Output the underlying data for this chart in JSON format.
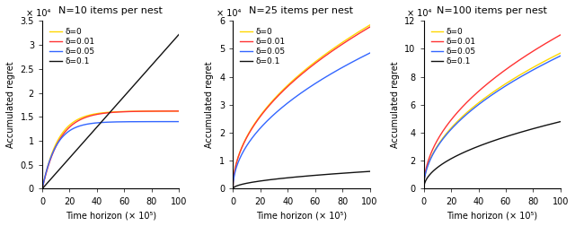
{
  "subplots": [
    {
      "title": "N=10 items per nest",
      "ylim": [
        0,
        35000.0
      ],
      "yticks": [
        0,
        5000.0,
        10000.0,
        15000.0,
        20000.0,
        25000.0,
        30000.0,
        35000.0
      ],
      "ytick_labels": [
        "0",
        "0.5",
        "1",
        "1.5",
        "2",
        "2.5",
        "3",
        "3.5"
      ],
      "ylabel": "Accumulated regret",
      "xlabel": "Time horizon (× 10⁵)",
      "scale_label": "× 10⁴",
      "curves": [
        {
          "delta": 0,
          "label": "δ=0",
          "color": "#FFD700",
          "type": "saturate",
          "sat_val": 16200.0,
          "sat_t": 35,
          "init_slope": 1.1
        },
        {
          "delta": 0.01,
          "label": "δ=0.01",
          "color": "#FF3333",
          "type": "saturate",
          "sat_val": 16200.0,
          "sat_t": 38,
          "init_slope": 1.05
        },
        {
          "delta": 0.05,
          "label": "δ=0.05",
          "color": "#3366FF",
          "type": "saturate",
          "sat_val": 14000.0,
          "sat_t": 30,
          "init_slope": 1.0
        },
        {
          "delta": 0.1,
          "label": "δ=0.1",
          "color": "#111111",
          "type": "linear",
          "final_val": 32200.0,
          "init_slope": 1.0
        }
      ]
    },
    {
      "title": "N=25 items per nest",
      "ylim": [
        0,
        60000.0
      ],
      "yticks": [
        0,
        10000.0,
        20000.0,
        30000.0,
        40000.0,
        50000.0,
        60000.0
      ],
      "ytick_labels": [
        "0",
        "1",
        "2",
        "3",
        "4",
        "5",
        "6"
      ],
      "ylabel": "Accumulated regret",
      "xlabel": "Time horizon (× 10⁵)",
      "scale_label": "× 10⁴",
      "curves": [
        {
          "delta": 0,
          "label": "δ=0",
          "color": "#FFD700",
          "type": "sqrt",
          "final_val": 58500.0,
          "init_slope": 3.5
        },
        {
          "delta": 0.01,
          "label": "δ=0.01",
          "color": "#FF3333",
          "type": "sqrt",
          "final_val": 57800.0,
          "init_slope": 3.4
        },
        {
          "delta": 0.05,
          "label": "δ=0.05",
          "color": "#3366FF",
          "type": "sqrt",
          "final_val": 48500.0,
          "init_slope": 2.8
        },
        {
          "delta": 0.1,
          "label": "δ=0.1",
          "color": "#111111",
          "type": "sqrt",
          "final_val": 6200.0,
          "init_slope": 0.5
        }
      ]
    },
    {
      "title": "N=100 items per nest",
      "ylim": [
        0,
        120000.0
      ],
      "yticks": [
        0,
        20000.0,
        40000.0,
        60000.0,
        80000.0,
        100000.0,
        120000.0
      ],
      "ytick_labels": [
        "0",
        "2",
        "4",
        "6",
        "8",
        "10",
        "12"
      ],
      "ylabel": "Accumulated regret",
      "xlabel": "Time horizon (× 10⁵)",
      "scale_label": "× 10⁴",
      "curves": [
        {
          "delta": 0,
          "label": "δ=0",
          "color": "#FFD700",
          "type": "sqrt",
          "final_val": 97000.0,
          "init_slope": 6.0
        },
        {
          "delta": 0.01,
          "label": "δ=0.01",
          "color": "#FF3333",
          "type": "sqrt",
          "final_val": 110000.0,
          "init_slope": 6.5
        },
        {
          "delta": 0.05,
          "label": "δ=0.05",
          "color": "#3366FF",
          "type": "sqrt",
          "final_val": 95000.0,
          "init_slope": 5.8
        },
        {
          "delta": 0.1,
          "label": "δ=0.1",
          "color": "#111111",
          "type": "sqrt",
          "final_val": 48000.0,
          "init_slope": 2.2
        }
      ]
    }
  ],
  "xticks": [
    0,
    20,
    40,
    60,
    80,
    100
  ],
  "xlim": [
    0,
    100
  ],
  "figsize": [
    6.4,
    2.52
  ],
  "dpi": 100
}
